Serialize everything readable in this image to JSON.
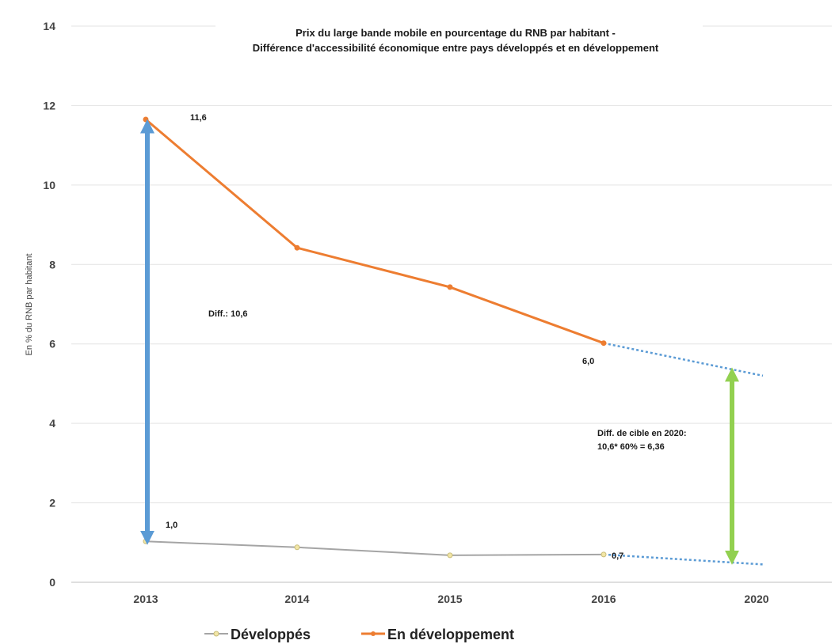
{
  "chart_data": {
    "type": "line",
    "title": "Prix du large bande mobile en pourcentage du RNB par habitant -",
    "subtitle": "Différence d'accessibilité économique entre pays développés et en développement",
    "xlabel": "",
    "ylabel": "En % du RNB par habitant",
    "categories": [
      "2013",
      "2014",
      "2015",
      "2016",
      "2020"
    ],
    "ylim": [
      0,
      14
    ],
    "yticks": [
      "0",
      "2",
      "4",
      "6",
      "8",
      "10",
      "12",
      "14"
    ],
    "grid": true,
    "legend_position": "bottom",
    "series": [
      {
        "name": "Développés",
        "color": "#a5a5a5",
        "marker_color": "#f2e6a6",
        "values": [
          1.03,
          0.88,
          0.68,
          0.7,
          null
        ],
        "projection_2020": 0.45
      },
      {
        "name": "En développement",
        "color": "#ed7d31",
        "values": [
          11.65,
          8.42,
          7.43,
          6.02,
          null
        ],
        "projection_2020": 5.2
      }
    ],
    "projection_color": "#5b9bd5",
    "annotations": {
      "dev_2013": "11,6",
      "devd_2013": "1,0",
      "dev_2016": "6,0",
      "devd_2016": "0,7",
      "diff": "Diff.: 10,6",
      "target_line1": "Diff. de cible en 2020:",
      "target_line2": "10,6* 60% = 6,36"
    },
    "arrows": [
      {
        "name": "gap-2013",
        "color": "#5b9bd5",
        "x": "2013",
        "from": 1.0,
        "to": 11.6
      },
      {
        "name": "target-gap-2020",
        "color": "#92d050",
        "x": "2020",
        "from": 0.5,
        "to": 5.35
      }
    ]
  }
}
